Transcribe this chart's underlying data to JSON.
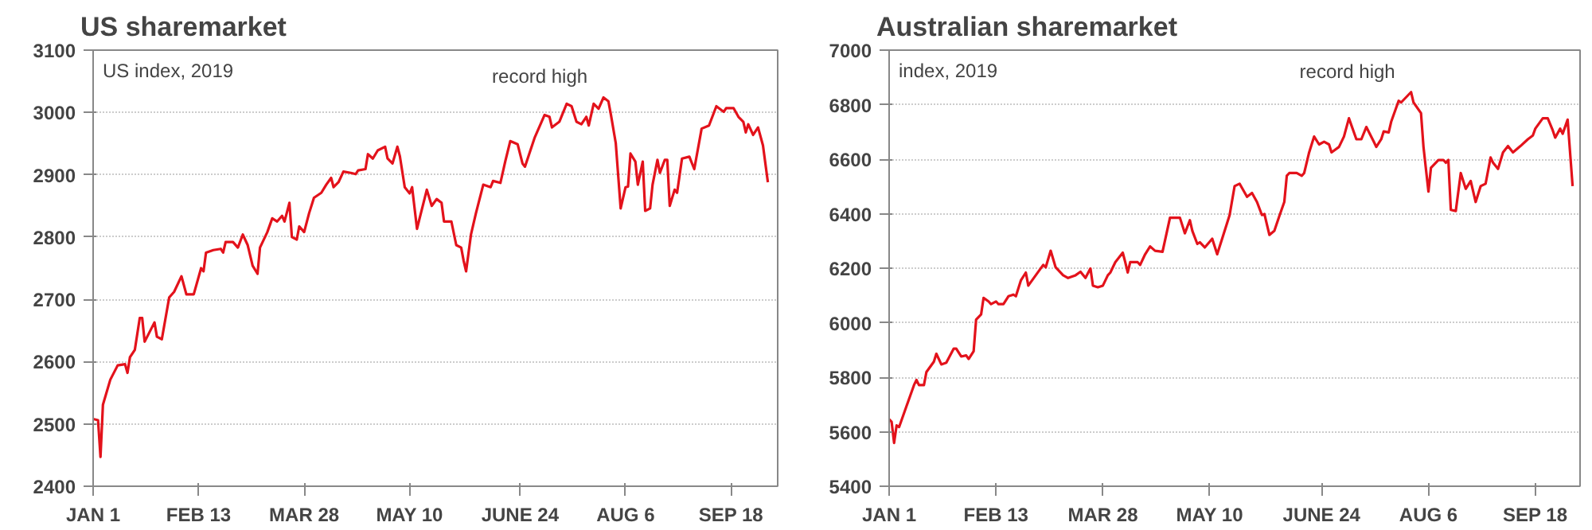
{
  "chart_data": [
    {
      "type": "line",
      "title": "US sharemarket",
      "subtitle": "US index, 2019",
      "annotations": [
        {
          "text": "record high",
          "x": "2019-07-28",
          "y": 3024
        }
      ],
      "x": [
        "2019-01-01",
        "2019-01-03",
        "2019-01-04",
        "2019-01-05",
        "2019-01-08",
        "2019-01-11",
        "2019-01-14",
        "2019-01-15",
        "2019-01-16",
        "2019-01-18",
        "2019-01-20",
        "2019-01-21",
        "2019-01-22",
        "2019-01-26",
        "2019-01-27",
        "2019-01-29",
        "2019-02-01",
        "2019-02-03",
        "2019-02-06",
        "2019-02-08",
        "2019-02-11",
        "2019-02-14",
        "2019-02-15",
        "2019-02-16",
        "2019-02-19",
        "2019-02-22",
        "2019-02-23",
        "2019-02-24",
        "2019-02-27",
        "2019-03-01",
        "2019-03-03",
        "2019-03-05",
        "2019-03-07",
        "2019-03-09",
        "2019-03-10",
        "2019-03-13",
        "2019-03-15",
        "2019-03-17",
        "2019-03-19",
        "2019-03-20",
        "2019-03-22",
        "2019-03-23",
        "2019-03-25",
        "2019-03-26",
        "2019-03-28",
        "2019-03-30",
        "2019-04-01",
        "2019-04-04",
        "2019-04-06",
        "2019-04-08",
        "2019-04-09",
        "2019-04-11",
        "2019-04-13",
        "2019-04-16",
        "2019-04-18",
        "2019-04-19",
        "2019-04-22",
        "2019-04-23",
        "2019-04-25",
        "2019-04-27",
        "2019-04-30",
        "2019-05-01",
        "2019-05-03",
        "2019-05-05",
        "2019-05-06",
        "2019-05-08",
        "2019-05-10",
        "2019-05-11",
        "2019-05-13",
        "2019-05-14",
        "2019-05-17",
        "2019-05-19",
        "2019-05-21",
        "2019-05-23",
        "2019-05-24",
        "2019-05-27",
        "2019-05-29",
        "2019-05-31",
        "2019-06-01",
        "2019-06-02",
        "2019-06-04",
        "2019-06-06",
        "2019-06-09",
        "2019-06-12",
        "2019-06-13",
        "2019-06-16",
        "2019-06-18",
        "2019-06-20",
        "2019-06-23",
        "2019-06-25",
        "2019-06-26",
        "2019-06-30",
        "2019-07-04",
        "2019-07-06",
        "2019-07-07",
        "2019-07-10",
        "2019-07-13",
        "2019-07-15",
        "2019-07-17",
        "2019-07-19",
        "2019-07-21",
        "2019-07-22",
        "2019-07-24",
        "2019-07-26",
        "2019-07-28",
        "2019-07-30",
        "2019-07-31",
        "2019-08-02",
        "2019-08-04",
        "2019-08-06",
        "2019-08-07",
        "2019-08-08",
        "2019-08-10",
        "2019-08-11",
        "2019-08-13",
        "2019-08-14",
        "2019-08-16",
        "2019-08-17",
        "2019-08-19",
        "2019-08-20",
        "2019-08-22",
        "2019-08-23",
        "2019-08-24",
        "2019-08-26",
        "2019-08-27",
        "2019-08-29",
        "2019-09-01",
        "2019-09-03",
        "2019-09-06",
        "2019-09-09",
        "2019-09-12",
        "2019-09-15",
        "2019-09-16",
        "2019-09-19",
        "2019-09-21",
        "2019-09-23",
        "2019-09-24",
        "2019-09-25",
        "2019-09-27",
        "2019-09-29",
        "2019-10-01",
        "2019-10-03"
      ],
      "series": [
        {
          "color": "#e3121b",
          "values": [
            2508,
            2506,
            2447,
            2531,
            2571,
            2594,
            2596,
            2582,
            2607,
            2619,
            2670,
            2670,
            2632,
            2663,
            2640,
            2636,
            2703,
            2712,
            2737,
            2708,
            2708,
            2750,
            2745,
            2775,
            2779,
            2781,
            2775,
            2792,
            2792,
            2783,
            2804,
            2787,
            2754,
            2741,
            2783,
            2808,
            2830,
            2825,
            2834,
            2825,
            2855,
            2800,
            2796,
            2817,
            2808,
            2838,
            2863,
            2871,
            2884,
            2895,
            2880,
            2888,
            2905,
            2903,
            2901,
            2907,
            2909,
            2933,
            2926,
            2939,
            2945,
            2926,
            2918,
            2945,
            2930,
            2880,
            2870,
            2880,
            2813,
            2829,
            2876,
            2850,
            2861,
            2855,
            2825,
            2825,
            2787,
            2783,
            2762,
            2745,
            2804,
            2838,
            2884,
            2880,
            2890,
            2887,
            2922,
            2954,
            2949,
            2918,
            2913,
            2960,
            2996,
            2993,
            2976,
            2985,
            3014,
            3010,
            2985,
            2981,
            2993,
            2979,
            3014,
            3006,
            3024,
            3018,
            2997,
            2951,
            2846,
            2880,
            2881,
            2934,
            2921,
            2884,
            2921,
            2842,
            2846,
            2884,
            2924,
            2903,
            2924,
            2924,
            2850,
            2876,
            2871,
            2926,
            2929,
            2909,
            2974,
            2979,
            3010,
            3001,
            3007,
            3007,
            2993,
            2985,
            2968,
            2981,
            2964,
            2976,
            2947,
            2888
          ]
        }
      ],
      "xlim": [
        "2019-01-01",
        "2019-10-07"
      ],
      "xticks": [
        {
          "value": "2019-01-01",
          "label": "JAN 1"
        },
        {
          "value": "2019-02-13",
          "label": "FEB 13"
        },
        {
          "value": "2019-03-28",
          "label": "MAR 28"
        },
        {
          "value": "2019-05-10",
          "label": "MAY 10"
        },
        {
          "value": "2019-06-24",
          "label": "JUNE 24"
        },
        {
          "value": "2019-08-06",
          "label": "AUG 6"
        },
        {
          "value": "2019-09-18",
          "label": "SEP 18"
        }
      ],
      "ylim": [
        2400,
        3100
      ],
      "yticks": [
        2400,
        2500,
        2600,
        2700,
        2800,
        2900,
        3000,
        3100
      ],
      "grid": "y",
      "line_style": "solid",
      "marker": "none"
    },
    {
      "type": "line",
      "title": "Australian sharemarket",
      "subtitle": "index, 2019",
      "annotations": [
        {
          "text": "record high",
          "x": "2019-07-30",
          "y": 6846
        }
      ],
      "x": [
        "2019-01-01",
        "2019-01-02",
        "2019-01-03",
        "2019-01-04",
        "2019-01-05",
        "2019-01-08",
        "2019-01-11",
        "2019-01-12",
        "2019-01-13",
        "2019-01-15",
        "2019-01-16",
        "2019-01-19",
        "2019-01-20",
        "2019-01-22",
        "2019-01-24",
        "2019-01-27",
        "2019-01-28",
        "2019-01-30",
        "2019-02-01",
        "2019-02-02",
        "2019-02-04",
        "2019-02-05",
        "2019-02-07",
        "2019-02-08",
        "2019-02-10",
        "2019-02-11",
        "2019-02-13",
        "2019-02-14",
        "2019-02-16",
        "2019-02-18",
        "2019-02-20",
        "2019-02-21",
        "2019-02-23",
        "2019-02-25",
        "2019-02-26",
        "2019-03-01",
        "2019-03-04",
        "2019-03-05",
        "2019-03-07",
        "2019-03-09",
        "2019-03-12",
        "2019-03-14",
        "2019-03-17",
        "2019-03-19",
        "2019-03-21",
        "2019-03-23",
        "2019-03-24",
        "2019-03-26",
        "2019-03-28",
        "2019-03-30",
        "2019-03-31",
        "2019-04-02",
        "2019-04-05",
        "2019-04-06",
        "2019-04-07",
        "2019-04-08",
        "2019-04-11",
        "2019-04-12",
        "2019-04-14",
        "2019-04-16",
        "2019-04-18",
        "2019-04-21",
        "2019-04-24",
        "2019-04-28",
        "2019-04-30",
        "2019-05-02",
        "2019-05-03",
        "2019-05-05",
        "2019-05-06",
        "2019-05-08",
        "2019-05-11",
        "2019-05-13",
        "2019-05-16",
        "2019-05-18",
        "2019-05-20",
        "2019-05-22",
        "2019-05-25",
        "2019-05-27",
        "2019-05-29",
        "2019-05-31",
        "2019-06-01",
        "2019-06-03",
        "2019-06-05",
        "2019-06-07",
        "2019-06-09",
        "2019-06-10",
        "2019-06-11",
        "2019-06-14",
        "2019-06-16",
        "2019-06-17",
        "2019-06-19",
        "2019-06-21",
        "2019-06-23",
        "2019-06-25",
        "2019-06-27",
        "2019-06-28",
        "2019-07-01",
        "2019-07-03",
        "2019-07-05",
        "2019-07-08",
        "2019-07-10",
        "2019-07-12",
        "2019-07-15",
        "2019-07-16",
        "2019-07-18",
        "2019-07-19",
        "2019-07-21",
        "2019-07-22",
        "2019-07-25",
        "2019-07-26",
        "2019-07-28",
        "2019-07-30",
        "2019-07-31",
        "2019-08-03",
        "2019-08-04",
        "2019-08-06",
        "2019-08-07",
        "2019-08-10",
        "2019-08-12",
        "2019-08-13",
        "2019-08-14",
        "2019-08-15",
        "2019-08-17",
        "2019-08-19",
        "2019-08-21",
        "2019-08-23",
        "2019-08-25",
        "2019-08-27",
        "2019-08-29",
        "2019-08-31",
        "2019-09-01",
        "2019-09-03",
        "2019-09-05",
        "2019-09-07",
        "2019-09-09",
        "2019-09-12",
        "2019-09-15",
        "2019-09-17",
        "2019-09-18",
        "2019-09-21",
        "2019-09-23",
        "2019-09-25",
        "2019-09-26",
        "2019-09-28",
        "2019-09-29",
        "2019-10-01",
        "2019-10-03"
      ],
      "series": [
        {
          "color": "#e3121b",
          "values": [
            5646,
            5636,
            5559,
            5623,
            5617,
            5694,
            5771,
            5790,
            5771,
            5771,
            5819,
            5857,
            5886,
            5847,
            5853,
            5905,
            5905,
            5876,
            5880,
            5867,
            5895,
            6011,
            6030,
            6091,
            6078,
            6068,
            6078,
            6068,
            6068,
            6097,
            6103,
            6097,
            6155,
            6184,
            6136,
            6174,
            6212,
            6203,
            6264,
            6203,
            6174,
            6164,
            6174,
            6187,
            6164,
            6199,
            6136,
            6130,
            6136,
            6174,
            6184,
            6222,
            6257,
            6222,
            6184,
            6222,
            6222,
            6212,
            6251,
            6280,
            6264,
            6260,
            6385,
            6385,
            6328,
            6376,
            6337,
            6289,
            6295,
            6276,
            6308,
            6251,
            6337,
            6395,
            6501,
            6510,
            6462,
            6476,
            6443,
            6395,
            6399,
            6322,
            6337,
            6391,
            6443,
            6539,
            6549,
            6549,
            6539,
            6549,
            6625,
            6683,
            6654,
            6664,
            6654,
            6625,
            6645,
            6683,
            6750,
            6673,
            6673,
            6718,
            6664,
            6645,
            6673,
            6702,
            6698,
            6737,
            6814,
            6808,
            6827,
            6846,
            6808,
            6769,
            6645,
            6481,
            6568,
            6597,
            6597,
            6587,
            6597,
            6414,
            6410,
            6549,
            6491,
            6520,
            6443,
            6501,
            6510,
            6606,
            6587,
            6564,
            6625,
            6648,
            6625,
            6648,
            6673,
            6687,
            6712,
            6750,
            6750,
            6706,
            6679,
            6712,
            6693,
            6745,
            6501
          ]
        }
      ],
      "xlim": [
        "2019-01-01",
        "2019-10-06"
      ],
      "xticks": [
        {
          "value": "2019-01-01",
          "label": "JAN 1"
        },
        {
          "value": "2019-02-13",
          "label": "FEB 13"
        },
        {
          "value": "2019-03-28",
          "label": "MAR 28"
        },
        {
          "value": "2019-05-10",
          "label": "MAY 10"
        },
        {
          "value": "2019-06-24",
          "label": "JUNE 24"
        },
        {
          "value": "2019-08-06",
          "label": "AUG 6"
        },
        {
          "value": "2019-09-18",
          "label": "SEP 18"
        }
      ],
      "ylim": [
        5400,
        7000
      ],
      "yticks": [
        5400,
        5600,
        5800,
        6000,
        6200,
        6400,
        6600,
        6800,
        7000
      ],
      "grid": "y",
      "line_style": "solid",
      "marker": "none"
    }
  ]
}
